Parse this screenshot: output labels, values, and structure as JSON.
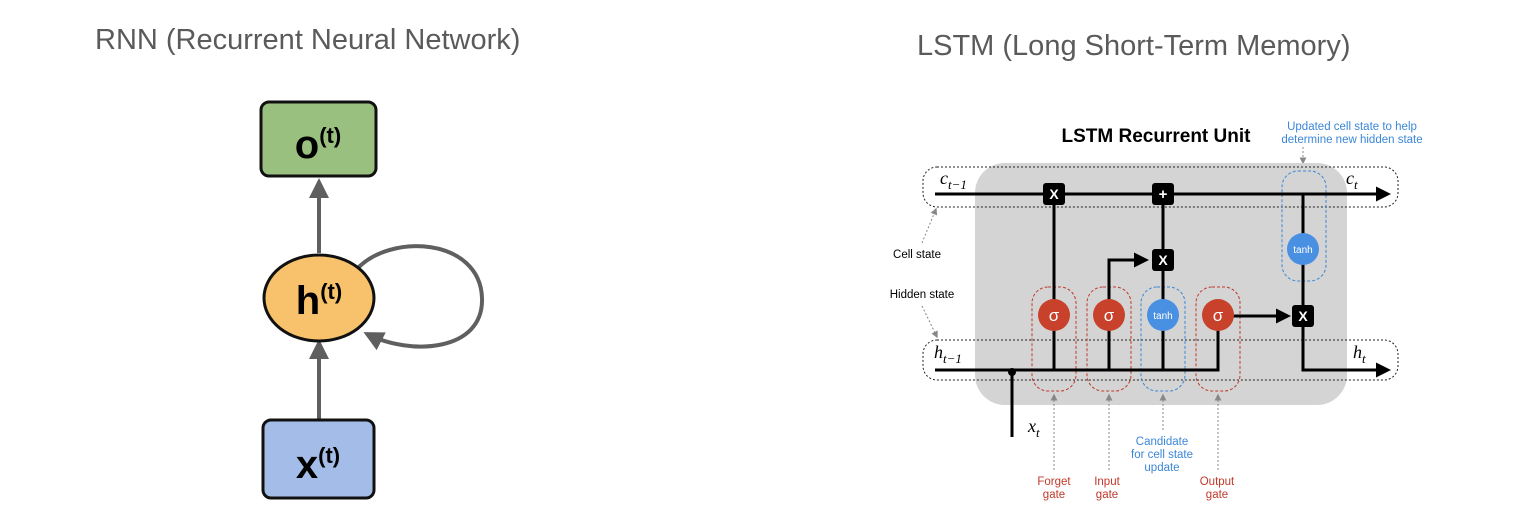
{
  "rnn": {
    "title": "RNN (Recurrent Neural Network)",
    "output_node": {
      "base": "o",
      "sup": "(t)",
      "color": "#9ac07f"
    },
    "hidden_node": {
      "base": "h",
      "sup": "(t)",
      "color": "#f7c26b"
    },
    "input_node": {
      "base": "x",
      "sup": "(t)",
      "color": "#a4bde8"
    }
  },
  "lstm": {
    "title": "LSTM (Long Short-Term Memory)",
    "unit_title": "LSTM Recurrent Unit",
    "annotation_top": [
      "Updated cell state to help",
      "determine new hidden state"
    ],
    "cell_prev": {
      "base": "c",
      "sub": "t−1"
    },
    "cell_next": {
      "base": "c",
      "sub": "t"
    },
    "hidden_prev": {
      "base": "h",
      "sub": "t−1"
    },
    "hidden_next": {
      "base": "h",
      "sub": "t"
    },
    "input": {
      "base": "x",
      "sub": "t"
    },
    "cell_state_label": "Cell state",
    "hidden_state_label": "Hidden state",
    "ops": {
      "multiply": "X",
      "add": "+",
      "sigma": "σ",
      "tanh": "tanh"
    },
    "gate_labels": {
      "forget": [
        "Forget",
        "gate"
      ],
      "input": [
        "Input",
        "gate"
      ],
      "candidate": [
        "Candidate",
        "for cell state",
        "update"
      ],
      "output": [
        "Output",
        "gate"
      ]
    },
    "colors": {
      "sigma": "#c8412b",
      "tanh": "#4a90e2",
      "red_label": "#c0392b",
      "blue_label": "#3b87d8",
      "unit_bg": "#d4d4d4"
    }
  }
}
